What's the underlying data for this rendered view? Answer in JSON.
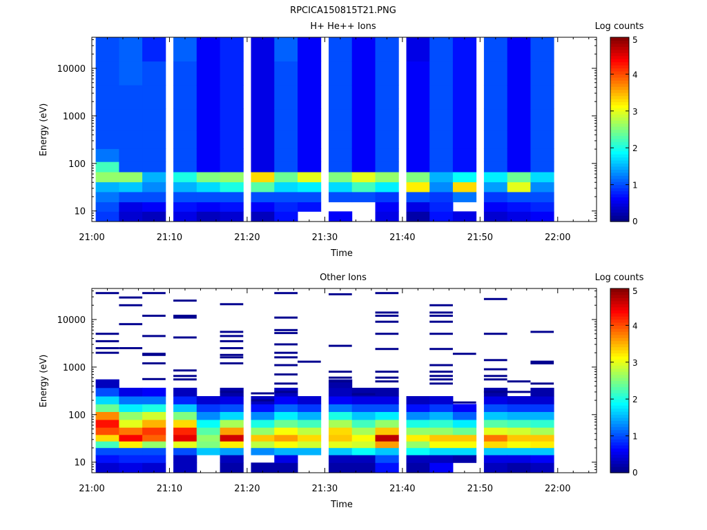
{
  "figure_title": "RPCICA150815T21.PNG",
  "chart_data": [
    {
      "type": "heatmap",
      "title": "H+ He++ Ions",
      "xlabel": "Time",
      "ylabel": "Energy (eV)",
      "x_ticks": [
        "21:00",
        "21:10",
        "21:20",
        "21:30",
        "21:40",
        "21:50",
        "22:00"
      ],
      "x_range": [
        "21:00",
        "22:05"
      ],
      "y_scale": "log",
      "y_ticks": [
        10,
        100,
        1000,
        10000
      ],
      "y_range": [
        6,
        45000
      ],
      "colorbar": {
        "label": "Log counts",
        "range": [
          0,
          5
        ],
        "ticks": [
          0,
          1,
          2,
          3,
          4,
          5
        ]
      },
      "time_bins": [
        "21:02",
        "21:05",
        "21:08",
        "21:12",
        "21:15",
        "21:18",
        "21:22",
        "21:25",
        "21:28",
        "21:32",
        "21:35",
        "21:38",
        "21:42",
        "21:45",
        "21:48",
        "21:52",
        "21:55",
        "21:58"
      ],
      "energy_bins_eV": [
        8,
        12,
        20,
        32,
        52,
        85,
        140,
        300,
        800,
        2500,
        8000,
        25000
      ],
      "values_log_counts_by_time_bin": [
        [
          0.9,
          1.0,
          1.2,
          1.5,
          2.6,
          2.2,
          1.2,
          1.0,
          1.0,
          1.0,
          1.0,
          1.0
        ],
        [
          0.4,
          0.5,
          1.0,
          1.6,
          2.6,
          1.0,
          1.0,
          1.0,
          1.0,
          1.0,
          1.1,
          1.1
        ],
        [
          0.3,
          0.6,
          1.0,
          1.3,
          1.5,
          1.0,
          1.0,
          1.0,
          1.0,
          1.0,
          1.0,
          0.8
        ],
        [
          0.5,
          0.7,
          1.0,
          1.5,
          2.0,
          1.0,
          1.0,
          1.0,
          1.0,
          1.0,
          1.0,
          1.1
        ],
        [
          0.3,
          0.6,
          1.0,
          1.7,
          2.5,
          0.6,
          0.6,
          0.6,
          0.6,
          0.6,
          0.6,
          0.6
        ],
        [
          0.4,
          0.7,
          1.0,
          2.0,
          2.6,
          0.8,
          0.8,
          0.8,
          0.8,
          0.8,
          0.8,
          0.8
        ],
        [
          0.3,
          0.6,
          1.0,
          2.3,
          3.3,
          0.5,
          0.5,
          0.5,
          0.5,
          0.5,
          0.5,
          0.5
        ],
        [
          0.7,
          0.8,
          1.0,
          1.7,
          2.4,
          1.0,
          1.0,
          1.0,
          1.0,
          1.0,
          1.0,
          1.1
        ],
        [
          null,
          0.7,
          1.0,
          1.8,
          3.0,
          0.6,
          0.6,
          0.6,
          0.6,
          0.6,
          0.6,
          0.6
        ],
        [
          0.6,
          null,
          1.0,
          1.7,
          2.5,
          1.0,
          1.0,
          1.0,
          1.0,
          1.0,
          1.0,
          1.0
        ],
        [
          null,
          null,
          1.0,
          2.2,
          3.0,
          0.6,
          0.6,
          0.6,
          0.6,
          0.6,
          0.6,
          0.6
        ],
        [
          0.5,
          0.6,
          0.9,
          1.8,
          2.6,
          1.0,
          1.0,
          1.0,
          1.0,
          1.0,
          1.0,
          1.0
        ],
        [
          0.2,
          0.5,
          1.0,
          3.2,
          2.5,
          0.6,
          0.6,
          0.6,
          0.6,
          0.6,
          0.6,
          0.5
        ],
        [
          0.7,
          0.8,
          0.9,
          1.3,
          1.5,
          1.0,
          1.0,
          1.0,
          1.0,
          1.0,
          1.0,
          1.0
        ],
        [
          0.5,
          null,
          1.2,
          3.3,
          1.9,
          0.7,
          0.7,
          0.7,
          0.7,
          0.7,
          0.7,
          0.7
        ],
        [
          0.4,
          0.6,
          0.9,
          1.4,
          1.8,
          1.0,
          1.0,
          1.0,
          1.0,
          1.0,
          1.0,
          1.0
        ],
        [
          0.5,
          0.7,
          1.0,
          3.0,
          2.4,
          0.6,
          0.6,
          0.6,
          0.6,
          0.6,
          0.6,
          0.6
        ],
        [
          0.6,
          0.8,
          1.0,
          1.3,
          1.7,
          1.0,
          1.0,
          1.0,
          1.0,
          1.0,
          1.0,
          1.0
        ]
      ]
    },
    {
      "type": "heatmap",
      "title": "Other Ions",
      "xlabel": "Time",
      "ylabel": "Energy (eV)",
      "x_ticks": [
        "21:00",
        "21:10",
        "21:20",
        "21:30",
        "21:40",
        "21:50",
        "22:00"
      ],
      "x_range": [
        "21:00",
        "22:05"
      ],
      "y_scale": "log",
      "y_ticks": [
        10,
        100,
        1000,
        10000
      ],
      "y_range": [
        6,
        45000
      ],
      "colorbar": {
        "label": "Log counts",
        "range": [
          0,
          5
        ],
        "ticks": [
          0,
          1,
          2,
          3,
          4,
          5
        ]
      },
      "time_bins": [
        "21:02",
        "21:05",
        "21:08",
        "21:12",
        "21:15",
        "21:18",
        "21:22",
        "21:25",
        "21:28",
        "21:32",
        "21:35",
        "21:38",
        "21:42",
        "21:45",
        "21:48",
        "21:52",
        "21:55",
        "21:58"
      ],
      "energy_bins_eV": [
        8,
        12,
        17,
        24,
        32,
        45,
        65,
        95,
        140,
        200,
        300,
        450
      ],
      "values_log_counts_by_time_bin": [
        [
          0.4,
          0.7,
          1.0,
          2.2,
          3.3,
          4.0,
          4.3,
          3.7,
          2.4,
          1.7,
          1.0,
          0.3
        ],
        [
          0.5,
          0.8,
          1.0,
          3.2,
          4.4,
          3.8,
          3.0,
          2.6,
          1.8,
          1.2,
          0.5,
          null
        ],
        [
          0.4,
          0.8,
          1.0,
          2.6,
          3.9,
          4.1,
          3.5,
          2.9,
          2.0,
          1.2,
          0.6,
          null
        ],
        [
          0.3,
          0.3,
          1.0,
          3.0,
          4.5,
          4.2,
          3.3,
          2.5,
          1.6,
          0.8,
          0.3,
          null
        ],
        [
          null,
          null,
          1.6,
          2.5,
          2.6,
          2.3,
          1.9,
          1.3,
          0.9,
          0.4,
          null,
          null
        ],
        [
          0.2,
          0.3,
          1.4,
          3.2,
          4.6,
          3.6,
          2.7,
          1.7,
          1.0,
          0.5,
          0.2,
          null
        ],
        [
          0.2,
          null,
          1.3,
          2.8,
          3.4,
          2.6,
          2.0,
          1.3,
          0.7,
          0.3,
          null,
          null
        ],
        [
          0.2,
          0.5,
          1.5,
          3.1,
          3.6,
          3.1,
          2.4,
          1.8,
          1.1,
          0.6,
          0.3,
          null
        ],
        [
          null,
          null,
          1.5,
          2.9,
          3.3,
          2.8,
          2.2,
          1.5,
          0.9,
          0.4,
          null,
          null
        ],
        [
          0.2,
          0.3,
          1.6,
          3.0,
          3.4,
          3.3,
          2.7,
          2.0,
          1.2,
          0.6,
          0.3,
          0.2
        ],
        [
          0.2,
          0.3,
          1.9,
          2.9,
          3.1,
          2.7,
          2.2,
          1.6,
          1.0,
          0.5,
          0.2,
          null
        ],
        [
          0.7,
          1.0,
          1.6,
          3.6,
          4.7,
          3.4,
          2.6,
          1.8,
          1.0,
          0.5,
          0.2,
          null
        ],
        [
          0.2,
          0.3,
          1.9,
          2.6,
          3.2,
          2.6,
          2.0,
          1.3,
          0.7,
          0.3,
          null,
          null
        ],
        [
          0.6,
          0.3,
          1.7,
          3.1,
          3.4,
          2.6,
          2.1,
          1.5,
          0.9,
          0.4,
          null,
          null
        ],
        [
          null,
          0.2,
          1.7,
          3.1,
          3.4,
          2.4,
          1.8,
          1.1,
          0.6,
          null,
          null,
          null
        ],
        [
          0.3,
          0.5,
          1.6,
          3.3,
          3.8,
          3.0,
          2.3,
          1.6,
          1.0,
          0.5,
          0.2,
          null
        ],
        [
          0.2,
          0.5,
          1.6,
          3.1,
          3.4,
          2.9,
          2.2,
          1.5,
          0.9,
          0.4,
          null,
          null
        ],
        [
          0.3,
          0.6,
          1.6,
          3.2,
          3.4,
          2.7,
          2.1,
          1.5,
          0.9,
          0.4,
          0.2,
          null
        ]
      ],
      "sparse_lines": [
        {
          "time_bin": "21:02",
          "energies_eV": [
            36000,
            5000,
            3500,
            2500,
            2000
          ]
        },
        {
          "time_bin": "21:05",
          "energies_eV": [
            29000,
            20000,
            8000,
            2500
          ]
        },
        {
          "time_bin": "21:08",
          "energies_eV": [
            36000,
            12000,
            4500,
            1900,
            1800,
            1200,
            560
          ]
        },
        {
          "time_bin": "21:12",
          "energies_eV": [
            25000,
            12000,
            11000,
            4200,
            850,
            650,
            550
          ]
        },
        {
          "time_bin": "21:18",
          "energies_eV": [
            21000,
            5500,
            4500,
            3500,
            2500,
            1800,
            1600,
            1200,
            300
          ]
        },
        {
          "time_bin": "21:22",
          "energies_eV": [
            280,
            200
          ]
        },
        {
          "time_bin": "21:25",
          "energies_eV": [
            36000,
            11000,
            6000,
            5200,
            3000,
            2000,
            1600,
            1100,
            700,
            450,
            300
          ]
        },
        {
          "time_bin": "21:28",
          "energies_eV": [
            1300
          ]
        },
        {
          "time_bin": "21:32",
          "energies_eV": [
            34000,
            2800,
            800,
            600,
            500
          ]
        },
        {
          "time_bin": "21:35",
          "energies_eV": [
            270
          ]
        },
        {
          "time_bin": "21:38",
          "energies_eV": [
            36000,
            14000,
            12000,
            9000,
            5000,
            2400,
            800,
            600,
            500
          ]
        },
        {
          "time_bin": "21:45",
          "energies_eV": [
            20000,
            14000,
            12000,
            9000,
            5000,
            2400,
            1100,
            800,
            650,
            550,
            450
          ]
        },
        {
          "time_bin": "21:48",
          "energies_eV": [
            1900,
            180
          ]
        },
        {
          "time_bin": "21:52",
          "energies_eV": [
            27000,
            5000,
            1400,
            900,
            650,
            550,
            300
          ]
        },
        {
          "time_bin": "21:55",
          "energies_eV": [
            500,
            300
          ]
        },
        {
          "time_bin": "21:58",
          "energies_eV": [
            5500,
            1300,
            1200,
            450
          ]
        }
      ]
    }
  ]
}
